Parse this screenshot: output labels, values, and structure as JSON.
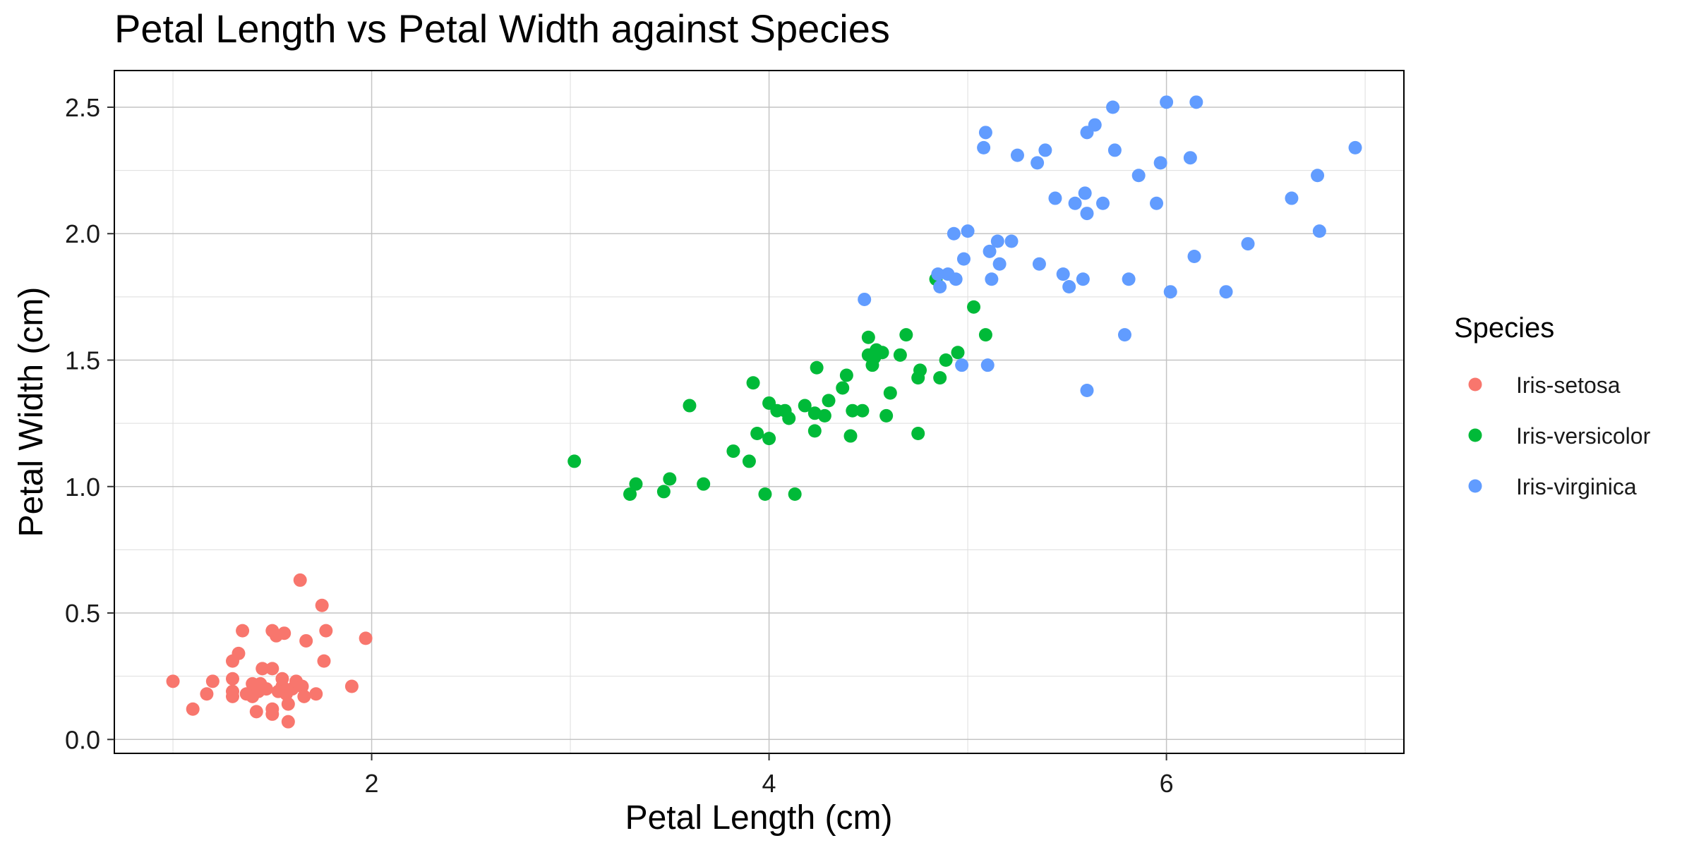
{
  "chart_data": {
    "type": "scatter",
    "title": "Petal Length vs Petal Width against Species",
    "xlabel": "Petal Length (cm)",
    "ylabel": "Petal Width (cm)",
    "xlim": [
      0.705,
      7.195
    ],
    "ylim": [
      -0.055,
      2.645
    ],
    "x_ticks": [
      2,
      4,
      6
    ],
    "x_tick_labels": [
      "2",
      "4",
      "6"
    ],
    "y_ticks": [
      0.0,
      0.5,
      1.0,
      1.5,
      2.0,
      2.5
    ],
    "y_tick_labels": [
      "0.0",
      "0.5",
      "1.0",
      "1.5",
      "2.0",
      "2.5"
    ],
    "grid": true,
    "legend": {
      "title": "Species",
      "position": "right"
    },
    "series": [
      {
        "name": "Iris-setosa",
        "color": "#F8766D",
        "points": [
          [
            1.0,
            0.23
          ],
          [
            1.1,
            0.12
          ],
          [
            1.17,
            0.18
          ],
          [
            1.2,
            0.23
          ],
          [
            1.3,
            0.17
          ],
          [
            1.3,
            0.19
          ],
          [
            1.3,
            0.24
          ],
          [
            1.3,
            0.31
          ],
          [
            1.33,
            0.34
          ],
          [
            1.35,
            0.43
          ],
          [
            1.37,
            0.18
          ],
          [
            1.4,
            0.22
          ],
          [
            1.4,
            0.17
          ],
          [
            1.42,
            0.11
          ],
          [
            1.43,
            0.19
          ],
          [
            1.45,
            0.28
          ],
          [
            1.47,
            0.2
          ],
          [
            1.5,
            0.28
          ],
          [
            1.5,
            0.43
          ],
          [
            1.5,
            0.1
          ],
          [
            1.5,
            0.12
          ],
          [
            1.52,
            0.41
          ],
          [
            1.55,
            0.21
          ],
          [
            1.55,
            0.24
          ],
          [
            1.56,
            0.42
          ],
          [
            1.57,
            0.18
          ],
          [
            1.58,
            0.07
          ],
          [
            1.58,
            0.14
          ],
          [
            1.6,
            0.2
          ],
          [
            1.62,
            0.23
          ],
          [
            1.64,
            0.63
          ],
          [
            1.65,
            0.21
          ],
          [
            1.66,
            0.17
          ],
          [
            1.67,
            0.39
          ],
          [
            1.72,
            0.18
          ],
          [
            1.75,
            0.53
          ],
          [
            1.76,
            0.31
          ],
          [
            1.77,
            0.43
          ],
          [
            1.9,
            0.21
          ],
          [
            1.97,
            0.4
          ],
          [
            1.44,
            0.22
          ],
          [
            1.53,
            0.19
          ]
        ]
      },
      {
        "name": "Iris-versicolor",
        "color": "#00BA38",
        "points": [
          [
            3.02,
            1.1
          ],
          [
            3.3,
            0.97
          ],
          [
            3.33,
            1.01
          ],
          [
            3.47,
            0.98
          ],
          [
            3.5,
            1.03
          ],
          [
            3.6,
            1.32
          ],
          [
            3.67,
            1.01
          ],
          [
            3.82,
            1.14
          ],
          [
            3.9,
            1.1
          ],
          [
            3.92,
            1.41
          ],
          [
            3.94,
            1.21
          ],
          [
            3.98,
            0.97
          ],
          [
            4.0,
            1.19
          ],
          [
            4.0,
            1.33
          ],
          [
            4.04,
            1.3
          ],
          [
            4.08,
            1.3
          ],
          [
            4.1,
            1.27
          ],
          [
            4.13,
            0.97
          ],
          [
            4.18,
            1.32
          ],
          [
            4.23,
            1.29
          ],
          [
            4.23,
            1.22
          ],
          [
            4.24,
            1.47
          ],
          [
            4.28,
            1.28
          ],
          [
            4.3,
            1.34
          ],
          [
            4.37,
            1.39
          ],
          [
            4.39,
            1.44
          ],
          [
            4.41,
            1.2
          ],
          [
            4.42,
            1.3
          ],
          [
            4.47,
            1.3
          ],
          [
            4.5,
            1.59
          ],
          [
            4.5,
            1.52
          ],
          [
            4.52,
            1.48
          ],
          [
            4.53,
            1.51
          ],
          [
            4.54,
            1.54
          ],
          [
            4.57,
            1.53
          ],
          [
            4.59,
            1.28
          ],
          [
            4.61,
            1.37
          ],
          [
            4.66,
            1.52
          ],
          [
            4.69,
            1.6
          ],
          [
            4.75,
            1.21
          ],
          [
            4.75,
            1.43
          ],
          [
            4.76,
            1.46
          ],
          [
            4.84,
            1.82
          ],
          [
            4.86,
            1.43
          ],
          [
            4.89,
            1.5
          ],
          [
            4.95,
            1.53
          ],
          [
            5.03,
            1.71
          ],
          [
            5.09,
            1.6
          ]
        ]
      },
      {
        "name": "Iris-virginica",
        "color": "#619CFF",
        "points": [
          [
            4.48,
            1.74
          ],
          [
            4.85,
            1.84
          ],
          [
            4.86,
            1.79
          ],
          [
            4.9,
            1.84
          ],
          [
            4.93,
            2.0
          ],
          [
            4.94,
            1.82
          ],
          [
            4.97,
            1.48
          ],
          [
            4.98,
            1.9
          ],
          [
            5.0,
            2.01
          ],
          [
            5.08,
            2.34
          ],
          [
            5.09,
            2.4
          ],
          [
            5.1,
            1.48
          ],
          [
            5.11,
            1.93
          ],
          [
            5.12,
            1.82
          ],
          [
            5.15,
            1.97
          ],
          [
            5.16,
            1.88
          ],
          [
            5.22,
            1.97
          ],
          [
            5.25,
            2.31
          ],
          [
            5.35,
            2.28
          ],
          [
            5.36,
            1.88
          ],
          [
            5.39,
            2.33
          ],
          [
            5.44,
            2.14
          ],
          [
            5.48,
            1.84
          ],
          [
            5.51,
            1.79
          ],
          [
            5.54,
            2.12
          ],
          [
            5.58,
            1.82
          ],
          [
            5.59,
            2.16
          ],
          [
            5.6,
            2.08
          ],
          [
            5.6,
            1.38
          ],
          [
            5.6,
            2.4
          ],
          [
            5.64,
            2.43
          ],
          [
            5.68,
            2.12
          ],
          [
            5.73,
            2.5
          ],
          [
            5.74,
            2.33
          ],
          [
            5.79,
            1.6
          ],
          [
            5.81,
            1.82
          ],
          [
            5.86,
            2.23
          ],
          [
            5.95,
            2.12
          ],
          [
            5.97,
            2.28
          ],
          [
            6.0,
            2.52
          ],
          [
            6.02,
            1.77
          ],
          [
            6.12,
            2.3
          ],
          [
            6.14,
            1.91
          ],
          [
            6.15,
            2.52
          ],
          [
            6.3,
            1.77
          ],
          [
            6.41,
            1.96
          ],
          [
            6.63,
            2.14
          ],
          [
            6.76,
            2.23
          ],
          [
            6.77,
            2.01
          ],
          [
            6.95,
            2.34
          ]
        ]
      }
    ]
  }
}
